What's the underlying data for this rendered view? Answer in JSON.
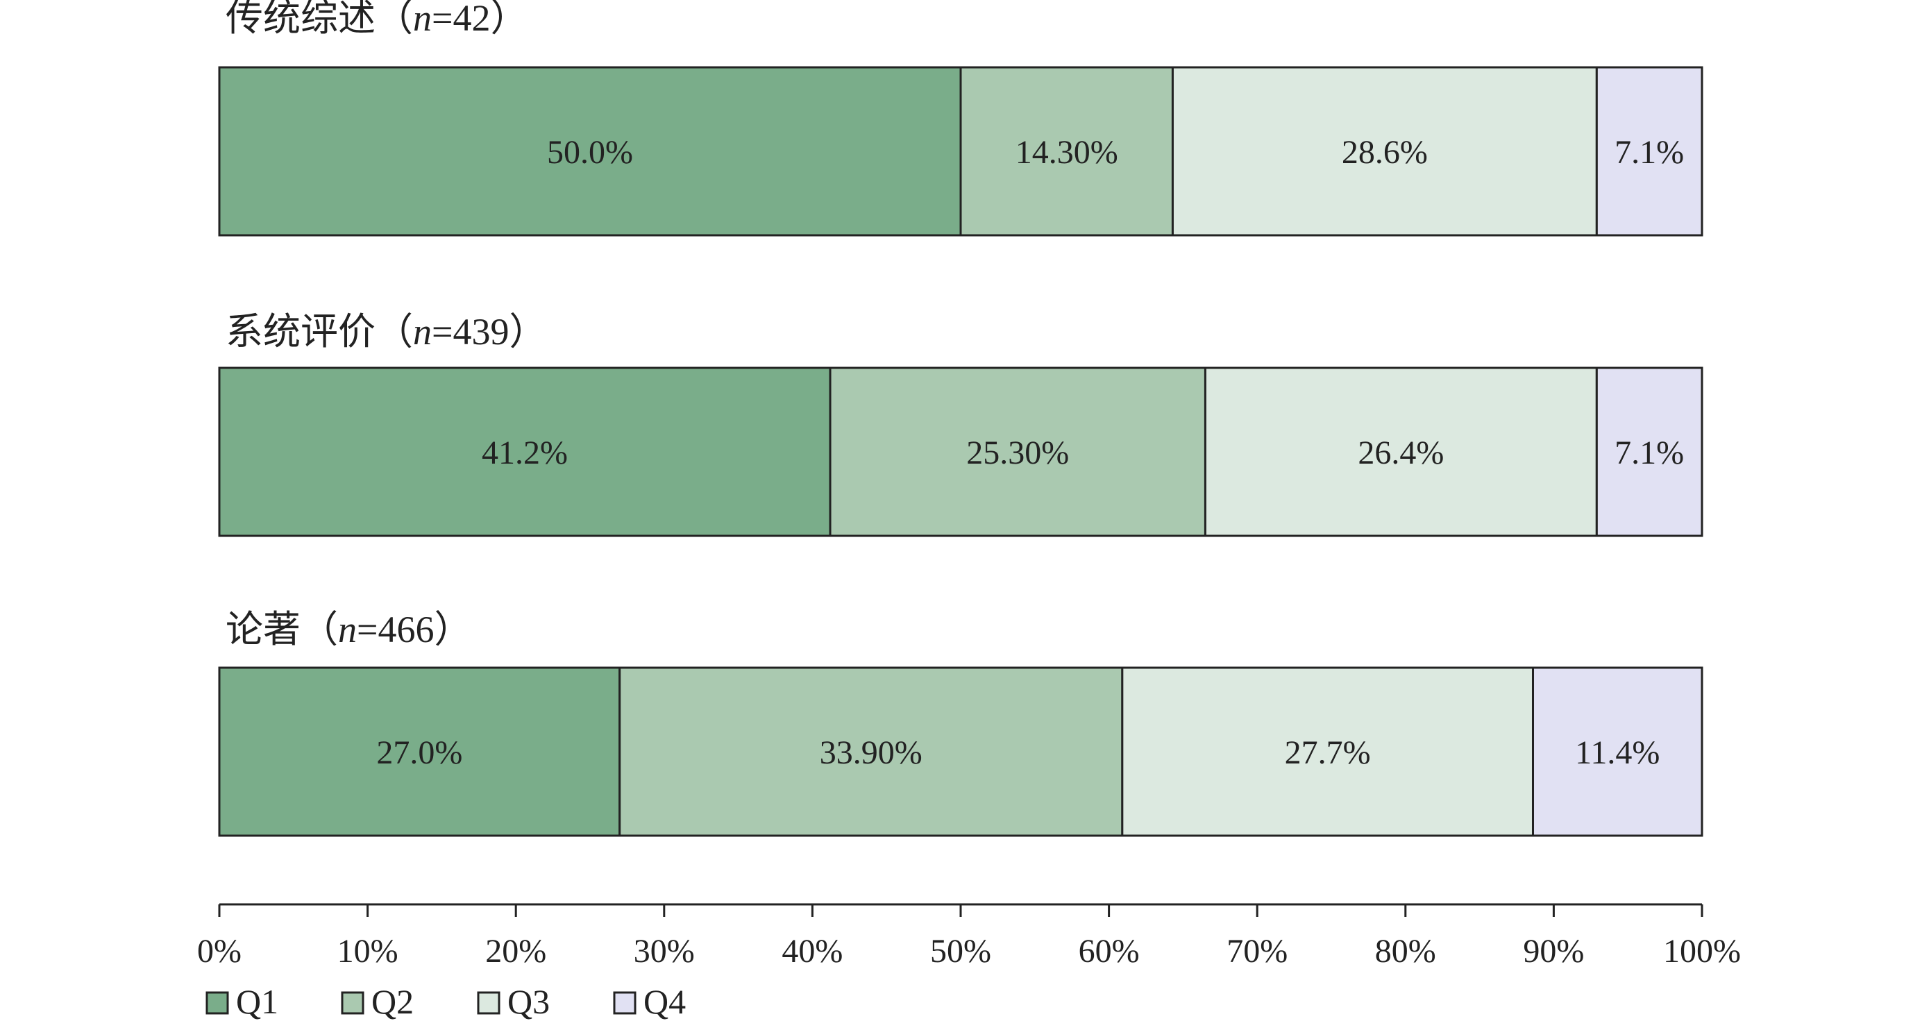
{
  "chart_data": {
    "type": "bar",
    "orientation": "horizontal",
    "stacked": true,
    "xlim": [
      0,
      100
    ],
    "x_ticks": [
      "0%",
      "10%",
      "20%",
      "30%",
      "40%",
      "50%",
      "60%",
      "70%",
      "80%",
      "90%",
      "100%"
    ],
    "grid": false,
    "legend_position": "bottom-left",
    "groups": [
      {
        "label": "传统综述（n=42）",
        "label_parts": {
          "prefix": "传统综述（",
          "italic": "n",
          "suffix": "=42）"
        },
        "segments": [
          {
            "series": "Q1",
            "value": 50.0,
            "label": "50.0%"
          },
          {
            "series": "Q2",
            "value": 14.3,
            "label": "14.30%"
          },
          {
            "series": "Q3",
            "value": 28.6,
            "label": "28.6%"
          },
          {
            "series": "Q4",
            "value": 7.1,
            "label": "7.1%"
          }
        ]
      },
      {
        "label": "系统评价（n=439）",
        "label_parts": {
          "prefix": "系统评价（",
          "italic": "n",
          "suffix": "=439）"
        },
        "segments": [
          {
            "series": "Q1",
            "value": 41.2,
            "label": "41.2%"
          },
          {
            "series": "Q2",
            "value": 25.3,
            "label": "25.30%"
          },
          {
            "series": "Q3",
            "value": 26.4,
            "label": "26.4%"
          },
          {
            "series": "Q4",
            "value": 7.1,
            "label": "7.1%"
          }
        ]
      },
      {
        "label": "论著（n=466）",
        "label_parts": {
          "prefix": "论著（",
          "italic": "n",
          "suffix": "=466）"
        },
        "segments": [
          {
            "series": "Q1",
            "value": 27.0,
            "label": "27.0%"
          },
          {
            "series": "Q2",
            "value": 33.9,
            "label": "33.90%"
          },
          {
            "series": "Q3",
            "value": 27.7,
            "label": "27.7%"
          },
          {
            "series": "Q4",
            "value": 11.4,
            "label": "11.4%"
          }
        ]
      }
    ],
    "series": [
      {
        "name": "Q1",
        "color": "#7aad8a"
      },
      {
        "name": "Q2",
        "color": "#aac9b0"
      },
      {
        "name": "Q3",
        "color": "#dce9e0"
      },
      {
        "name": "Q4",
        "color": "#e1e1f3"
      }
    ]
  }
}
